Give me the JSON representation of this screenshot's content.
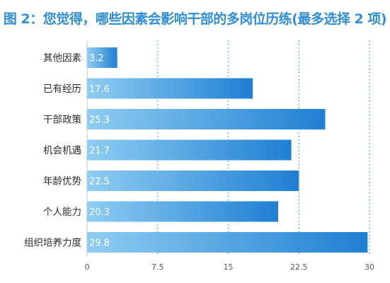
{
  "chart_data": {
    "type": "bar",
    "orientation": "horizontal",
    "title": "图 2：您觉得，哪些因素会影响干部的多岗位历练(最多选择 2 项)",
    "categories": [
      "其他因素",
      "已有经历",
      "干部政策",
      "机会机遇",
      "年龄优势",
      "个人能力",
      "组织培养力度"
    ],
    "values": [
      3.2,
      17.6,
      25.3,
      21.7,
      22.5,
      20.3,
      29.8
    ],
    "xlim": [
      0,
      30
    ],
    "xticks": [
      "0",
      "7.5",
      "15",
      "22.5",
      "30"
    ],
    "grid": "vertical dotted",
    "colors": {
      "bar_light": "#8fcdf2",
      "bar_dark": "#1f7fd3",
      "title": "#2f8ed8",
      "grid": "#3fa0e0"
    }
  }
}
